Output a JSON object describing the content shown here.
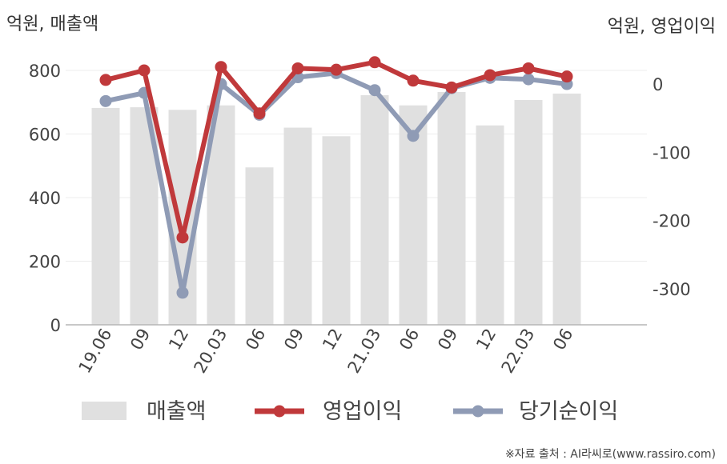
{
  "chart_data": {
    "type": "bar+line",
    "left_axis_unit": "억원, 매출액",
    "right_axis_unit": "억원, 영업이익",
    "categories": [
      "19.06",
      "09",
      "12",
      "20.03",
      "06",
      "09",
      "12",
      "21.03",
      "06",
      "09",
      "12",
      "22.03",
      "06"
    ],
    "left_ticks": [
      "0",
      "200",
      "400",
      "600",
      "800"
    ],
    "right_ticks": [
      "0",
      "-100",
      "-200",
      "-300"
    ],
    "left_ylim": [
      0,
      800
    ],
    "right_ylim": [
      -353,
      20
    ],
    "grid": true,
    "legend_position": "bottom",
    "series": [
      {
        "name": "매출액",
        "kind": "bar",
        "axis": "left",
        "color": "#e0e0e0",
        "values": [
          682,
          684,
          676,
          690,
          495,
          620,
          593,
          722,
          690,
          732,
          627,
          707,
          727
        ]
      },
      {
        "name": "영업이익",
        "kind": "line",
        "axis": "right",
        "color": "#c0393b",
        "values": [
          6,
          20,
          -225,
          25,
          -43,
          23,
          21,
          32,
          5,
          -5,
          13,
          23,
          11
        ]
      },
      {
        "name": "당기순이익",
        "kind": "line",
        "axis": "right",
        "color": "#8f9bb5",
        "values": [
          -25,
          -13,
          -306,
          0,
          -45,
          10,
          16,
          -9,
          -76,
          -6,
          9,
          7,
          0
        ]
      }
    ]
  },
  "source": "※자료 출처 : AI라씨로(www.rassiro.com)"
}
